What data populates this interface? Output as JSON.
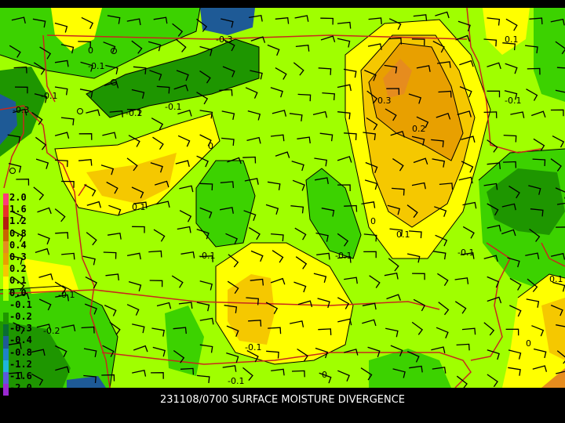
{
  "caption": "231108/0700 SURFACE MOISTURE DIVERGENCE",
  "legend": [
    {
      "label": "2.0",
      "color": "#ff3c78"
    },
    {
      "label": "1.6",
      "color": "#e8322a"
    },
    {
      "label": "1.2",
      "color": "#b41e10"
    },
    {
      "label": "0.8",
      "color": "#c86400"
    },
    {
      "label": "0.4",
      "color": "#e68c1e"
    },
    {
      "label": "0.3",
      "color": "#e8a000"
    },
    {
      "label": "0.2",
      "color": "#f5c800"
    },
    {
      "label": "0.1",
      "color": "#ffff00"
    },
    {
      "label": "0.0",
      "color": "#a0ff00"
    },
    {
      "label": "-0.1",
      "color": "#3cd200"
    },
    {
      "label": "-0.2",
      "color": "#1e9600"
    },
    {
      "label": "-0.3",
      "color": "#0a6e32"
    },
    {
      "label": "-0.4",
      "color": "#1e5a96"
    },
    {
      "label": "-0.8",
      "color": "#1e82c8"
    },
    {
      "label": "-1.2",
      "color": "#1eb4dc"
    },
    {
      "label": "-1.6",
      "color": "#5a5adc"
    },
    {
      "label": "-2.0",
      "color": "#9a28d2"
    }
  ],
  "contour_labels": [
    {
      "text": "0"
    },
    {
      "text": "-0.1"
    },
    {
      "text": "-0.3"
    },
    {
      "text": "-0.1"
    },
    {
      "text": "-0.2"
    },
    {
      "text": "-0.1"
    },
    {
      "text": "-0.3"
    },
    {
      "text": "0"
    },
    {
      "text": "0.3"
    },
    {
      "text": "0.2"
    },
    {
      "text": "0.1"
    },
    {
      "text": "-0.1"
    },
    {
      "text": "0.1"
    },
    {
      "text": "0"
    },
    {
      "text": "0.1"
    },
    {
      "text": "-0.1"
    },
    {
      "text": "-0.1"
    },
    {
      "text": "-0.1"
    },
    {
      "text": "-0.1"
    },
    {
      "text": "0"
    },
    {
      "text": "-0.2"
    },
    {
      "text": "-0.1"
    },
    {
      "text": "-0.1"
    },
    {
      "text": "0"
    },
    {
      "text": "0.1"
    }
  ],
  "colors": {
    "background": "#000000",
    "state_borders": "#c8281e",
    "contour_lines": "#000000",
    "wind_barbs": "#000000"
  }
}
